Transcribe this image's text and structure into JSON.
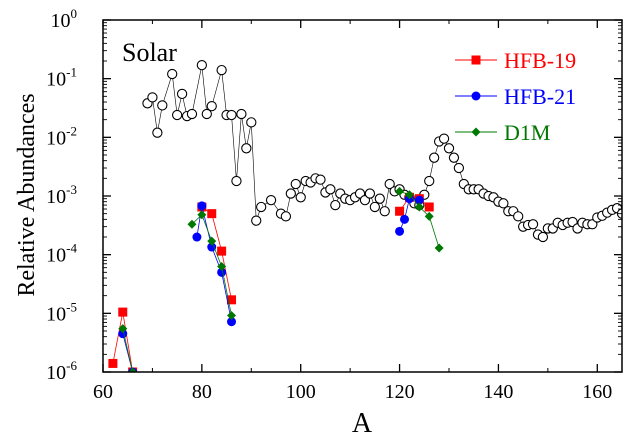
{
  "chart_data": {
    "type": "scatter",
    "title": "",
    "xlabel": "A",
    "ylabel": "Relative Abundances",
    "annotation": "Solar",
    "xlim": [
      60,
      165
    ],
    "ylim": [
      1e-06,
      1
    ],
    "yscale": "log",
    "grid": false,
    "legend_position": "top-right",
    "x_ticks": [
      60,
      80,
      100,
      120,
      140,
      160
    ],
    "x_tick_labels": [
      "60",
      "80",
      "100",
      "120",
      "140",
      "160"
    ],
    "y_ticks": [
      1e-06,
      1e-05,
      0.0001,
      0.001,
      0.01,
      0.1,
      1
    ],
    "y_tick_labels": [
      {
        "base": "10",
        "exp": "-6"
      },
      {
        "base": "10",
        "exp": "-5"
      },
      {
        "base": "10",
        "exp": "-4"
      },
      {
        "base": "10",
        "exp": "-3"
      },
      {
        "base": "10",
        "exp": "-2"
      },
      {
        "base": "10",
        "exp": "-1"
      },
      {
        "base": "10",
        "exp": "0"
      }
    ],
    "series": [
      {
        "name": "",
        "marker": "open-circle",
        "color": "#000000",
        "x": [
          69,
          70,
          71,
          72,
          74,
          75,
          76,
          77,
          78,
          80,
          81,
          82,
          84,
          85,
          86,
          87,
          88,
          89,
          90,
          91,
          92,
          94,
          96,
          97,
          98,
          99,
          100,
          101,
          102,
          103,
          104,
          105,
          106,
          107,
          108,
          109,
          110,
          111,
          112,
          113,
          114,
          115,
          116,
          117,
          118,
          119,
          120,
          121,
          122,
          123,
          124,
          125,
          126,
          127,
          128,
          129,
          130,
          131,
          132,
          133,
          134,
          135,
          136,
          137,
          138,
          139,
          140,
          141,
          142,
          143,
          144,
          145,
          146,
          147,
          148,
          149,
          150,
          151,
          152,
          153,
          154,
          155,
          156,
          157,
          158,
          159,
          160,
          161,
          162,
          163,
          164,
          165
        ],
        "y": [
          0.038,
          0.048,
          0.012,
          0.035,
          0.12,
          0.024,
          0.055,
          0.023,
          0.025,
          0.17,
          0.025,
          0.034,
          0.14,
          0.024,
          0.024,
          0.0018,
          0.025,
          0.0065,
          0.018,
          0.00038,
          0.00065,
          0.00085,
          0.0005,
          0.00045,
          0.0011,
          0.0016,
          0.00095,
          0.0018,
          0.0017,
          0.002,
          0.0019,
          0.00115,
          0.0013,
          0.0007,
          0.0011,
          0.0009,
          0.00085,
          0.00095,
          0.0011,
          0.00085,
          0.0011,
          0.00065,
          0.0009,
          0.00055,
          0.0016,
          0.0012,
          0.0013,
          0.00105,
          0.00095,
          0.00075,
          0.0007,
          0.00105,
          0.0018,
          0.0045,
          0.0085,
          0.0095,
          0.0065,
          0.0045,
          0.003,
          0.0016,
          0.0013,
          0.0013,
          0.0013,
          0.0011,
          0.001,
          0.00095,
          0.0008,
          0.00075,
          0.00055,
          0.00055,
          0.00045,
          0.0003,
          0.00032,
          0.00033,
          0.00022,
          0.0002,
          0.00028,
          0.00028,
          0.00035,
          0.00032,
          0.00035,
          0.00036,
          0.00028,
          0.00035,
          0.00033,
          0.00033,
          0.00043,
          0.00046,
          0.00052,
          0.00058,
          0.00062,
          0.0005
        ]
      },
      {
        "name": "HFB-19",
        "marker": "square",
        "color": "#ff0000",
        "segments": [
          {
            "x": [
              62,
              64,
              66
            ],
            "y": [
              1.4e-06,
              1.05e-05,
              1e-06
            ]
          },
          {
            "x": [
              80,
              82,
              84,
              86
            ],
            "y": [
              0.00065,
              0.0005,
              0.000115,
              1.7e-05
            ]
          },
          {
            "x": [
              120,
              122,
              124,
              126
            ],
            "y": [
              0.00055,
              0.00095,
              0.0009,
              0.00065
            ]
          }
        ]
      },
      {
        "name": "HFB-21",
        "marker": "circle",
        "color": "#0000ff",
        "segments": [
          {
            "x": [
              64,
              66
            ],
            "y": [
              4.5e-06,
              1e-06
            ]
          },
          {
            "x": [
              79,
              80,
              82,
              84,
              86
            ],
            "y": [
              0.0002,
              0.00068,
              0.000135,
              5e-05,
              7.2e-06
            ]
          },
          {
            "x": [
              120,
              121,
              122,
              124
            ],
            "y": [
              0.00025,
              0.0004,
              0.0009,
              0.00085
            ]
          }
        ]
      },
      {
        "name": "D1M",
        "marker": "diamond",
        "color": "#007700",
        "segments": [
          {
            "x": [
              64,
              66
            ],
            "y": [
              5.5e-06,
              1e-06
            ]
          },
          {
            "x": [
              78,
              80,
              82,
              84,
              86
            ],
            "y": [
              0.00033,
              0.00048,
              0.00017,
              6.3e-05,
              9.2e-06
            ]
          },
          {
            "x": [
              120,
              122,
              124,
              126,
              128
            ],
            "y": [
              0.0012,
              0.00105,
              0.00065,
              0.00045,
              0.00013
            ]
          }
        ]
      }
    ]
  }
}
